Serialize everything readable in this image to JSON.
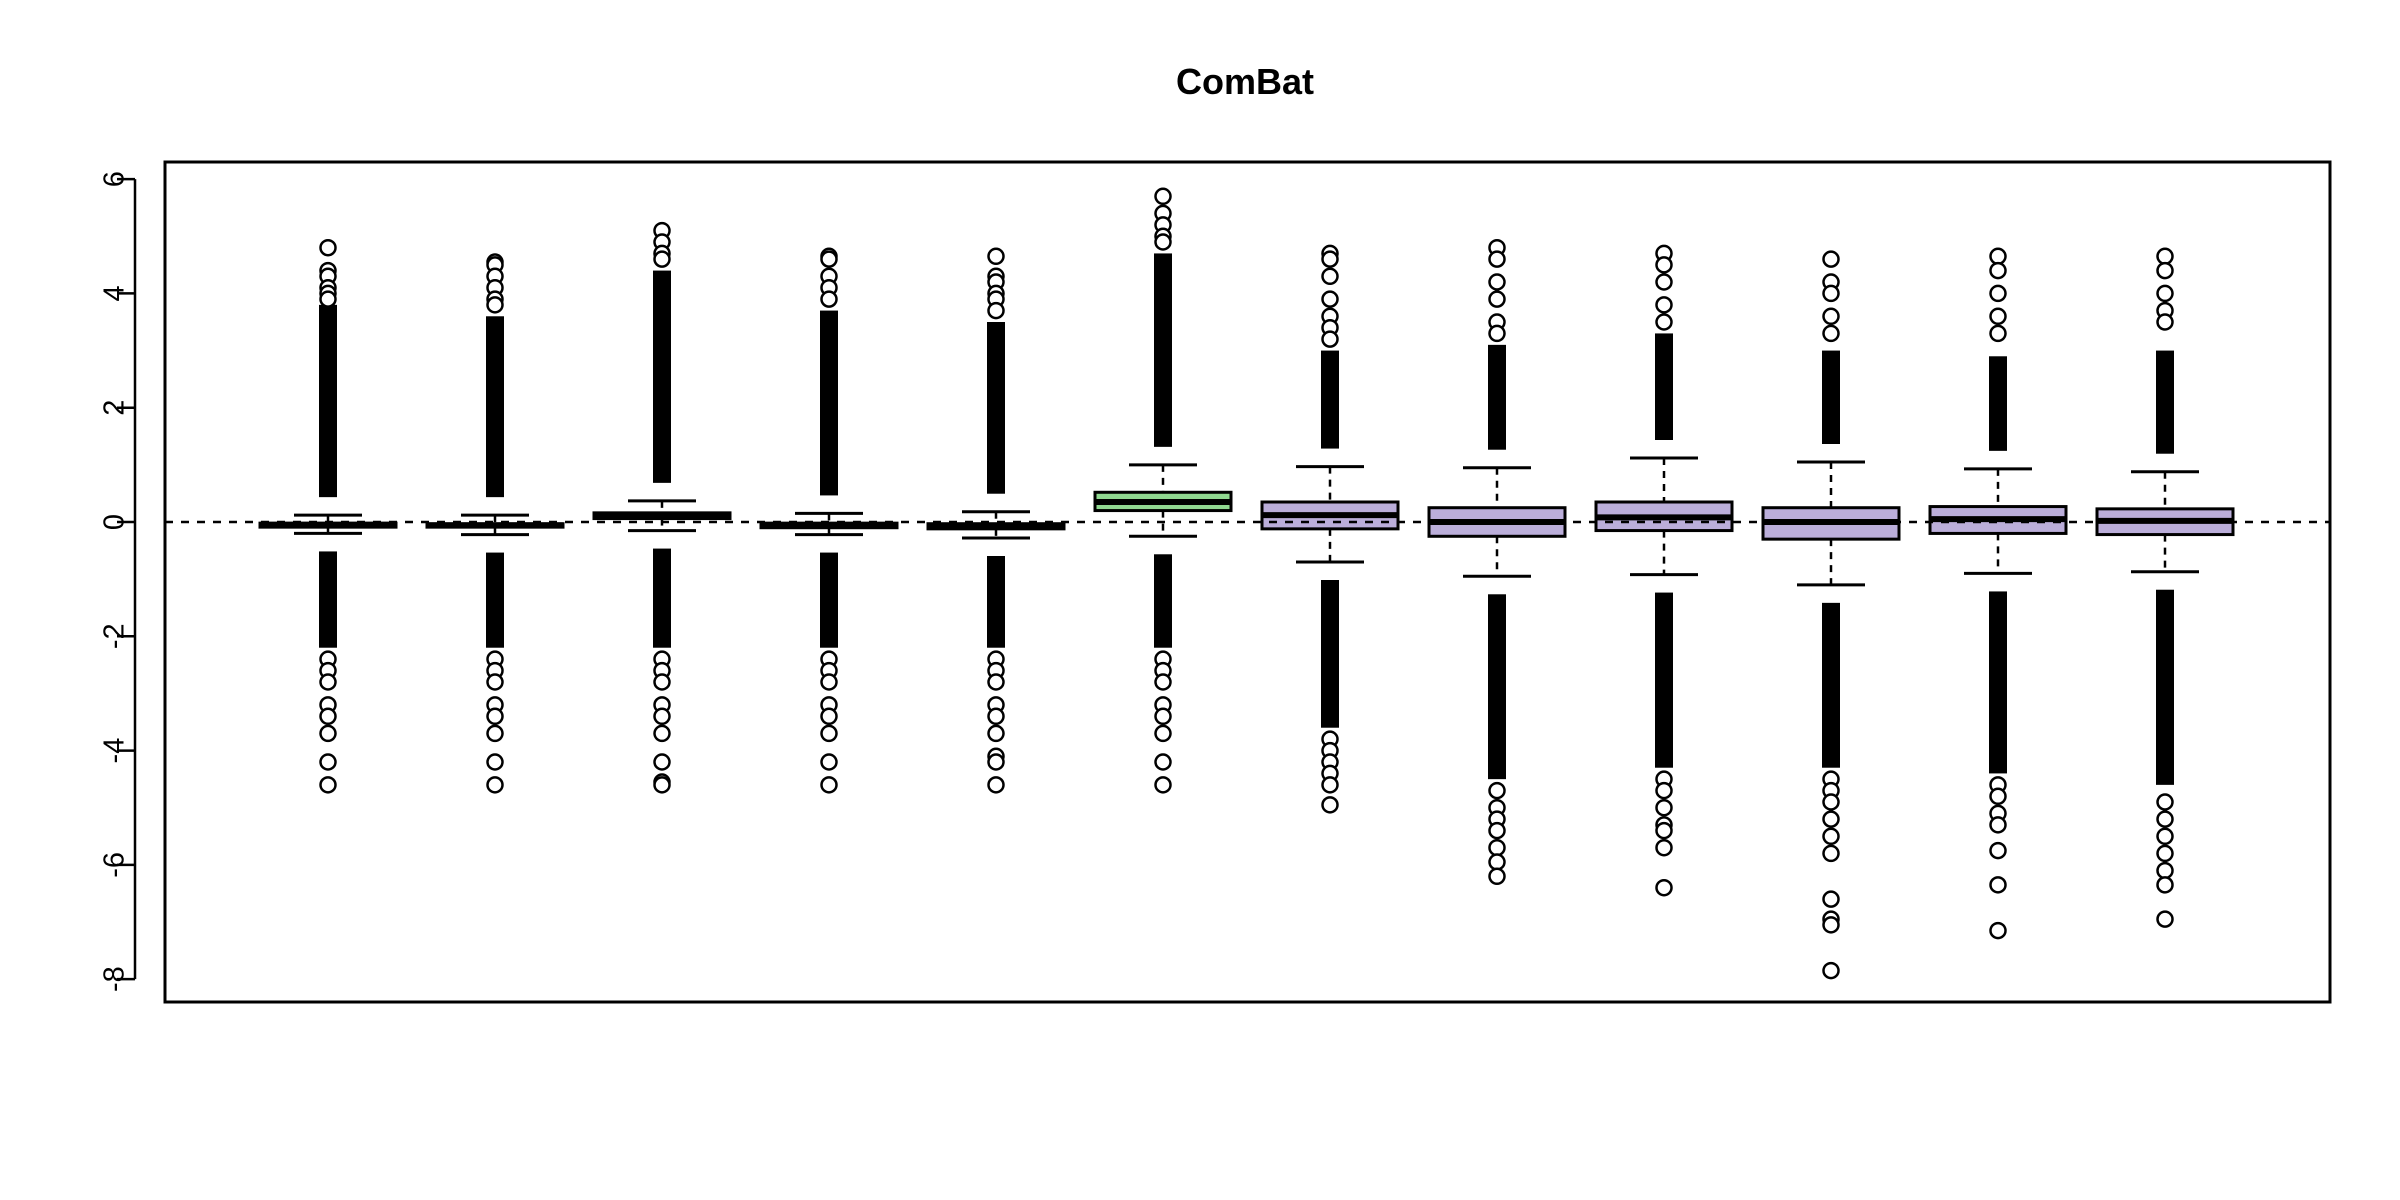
{
  "chart_data": {
    "type": "boxplot",
    "title": "ComBat",
    "xlabel": "",
    "ylabel": "",
    "ylim": [
      -8.4,
      6.3
    ],
    "yticks": [
      "6",
      "4",
      "2",
      "0",
      "-2",
      "-4",
      "-6",
      "-8"
    ],
    "ytick_values": [
      6,
      4,
      2,
      0,
      -2,
      -4,
      -6,
      -8
    ],
    "reference_line": 0,
    "grid": false,
    "legend": "none",
    "colors": {
      "batch1": "#000000",
      "batch2": "#90D890",
      "batch3": "#BBAEDA"
    },
    "boxes": [
      {
        "group": "batch1",
        "whisker_low": -0.2,
        "q1": -0.09,
        "median": -0.05,
        "q3": -0.02,
        "whisker_high": 0.12,
        "outlier_max": 4.8,
        "outlier_min": -4.6,
        "dense_high": 3.8,
        "dense_low": -2.2,
        "sparse_high": [
          4.4,
          4.3,
          4.1,
          4.0,
          3.9
        ],
        "sparse_low": [
          -2.4,
          -2.6,
          -2.8,
          -3.2,
          -3.4,
          -3.7,
          -4.2
        ]
      },
      {
        "group": "batch1",
        "whisker_low": -0.22,
        "q1": -0.09,
        "median": -0.06,
        "q3": -0.03,
        "whisker_high": 0.12,
        "outlier_max": 4.55,
        "outlier_min": -4.6,
        "dense_high": 3.6,
        "dense_low": -2.2,
        "sparse_high": [
          4.5,
          4.3,
          4.1,
          3.9,
          3.8
        ],
        "sparse_low": [
          -2.4,
          -2.6,
          -2.8,
          -3.2,
          -3.4,
          -3.7,
          -4.2
        ]
      },
      {
        "group": "batch1",
        "whisker_low": -0.15,
        "q1": 0.06,
        "median": 0.1,
        "q3": 0.16,
        "whisker_high": 0.37,
        "outlier_max": 5.1,
        "outlier_min": -4.6,
        "dense_high": 4.4,
        "dense_low": -2.2,
        "sparse_high": [
          4.9,
          4.7,
          4.6
        ],
        "sparse_low": [
          -2.4,
          -2.6,
          -2.8,
          -3.2,
          -3.4,
          -3.7,
          -4.2,
          -4.55
        ]
      },
      {
        "group": "batch1",
        "whisker_low": -0.22,
        "q1": -0.1,
        "median": -0.06,
        "q3": -0.02,
        "whisker_high": 0.15,
        "outlier_max": 4.65,
        "outlier_min": -4.6,
        "dense_high": 3.7,
        "dense_low": -2.2,
        "sparse_high": [
          4.6,
          4.3,
          4.1,
          3.9
        ],
        "sparse_low": [
          -2.4,
          -2.6,
          -2.8,
          -3.2,
          -3.4,
          -3.7,
          -4.2
        ]
      },
      {
        "group": "batch1",
        "whisker_low": -0.28,
        "q1": -0.12,
        "median": -0.07,
        "q3": -0.03,
        "whisker_high": 0.18,
        "outlier_max": 4.65,
        "outlier_min": -4.6,
        "dense_high": 3.5,
        "dense_low": -2.2,
        "sparse_high": [
          4.3,
          4.2,
          4.0,
          3.9,
          3.7
        ],
        "sparse_low": [
          -2.4,
          -2.6,
          -2.8,
          -3.2,
          -3.4,
          -3.7,
          -4.1,
          -4.2
        ]
      },
      {
        "group": "batch2",
        "whisker_low": -0.25,
        "q1": 0.2,
        "median": 0.35,
        "q3": 0.52,
        "whisker_high": 1.0,
        "outlier_max": 5.7,
        "outlier_min": -4.6,
        "dense_high": 4.7,
        "dense_low": -2.2,
        "sparse_high": [
          5.4,
          5.2,
          5.0,
          4.9
        ],
        "sparse_low": [
          -2.4,
          -2.6,
          -2.8,
          -3.2,
          -3.4,
          -3.7,
          -4.2
        ]
      },
      {
        "group": "batch3",
        "whisker_low": -0.7,
        "q1": -0.12,
        "median": 0.12,
        "q3": 0.35,
        "whisker_high": 0.97,
        "outlier_max": 4.7,
        "outlier_min": -4.95,
        "dense_high": 3.0,
        "dense_low": -3.6,
        "sparse_high": [
          4.6,
          4.3,
          3.9,
          3.6,
          3.4,
          3.2
        ],
        "sparse_low": [
          -3.8,
          -4.0,
          -4.2,
          -4.4,
          -4.6
        ]
      },
      {
        "group": "batch3",
        "whisker_low": -0.95,
        "q1": -0.25,
        "median": 0.0,
        "q3": 0.25,
        "whisker_high": 0.95,
        "outlier_max": 4.8,
        "outlier_min": -6.2,
        "dense_high": 3.1,
        "dense_low": -4.5,
        "sparse_high": [
          4.6,
          4.2,
          3.9,
          3.5,
          3.3
        ],
        "sparse_low": [
          -4.7,
          -5.0,
          -5.2,
          -5.4,
          -5.7,
          -5.95
        ]
      },
      {
        "group": "batch3",
        "whisker_low": -0.92,
        "q1": -0.15,
        "median": 0.08,
        "q3": 0.35,
        "whisker_high": 1.12,
        "outlier_max": 4.7,
        "outlier_min": -6.4,
        "dense_high": 3.3,
        "dense_low": -4.3,
        "sparse_high": [
          4.5,
          4.2,
          3.8,
          3.5
        ],
        "sparse_low": [
          -4.5,
          -4.7,
          -5.0,
          -5.3,
          -5.4,
          -5.7
        ]
      },
      {
        "group": "batch3",
        "whisker_low": -1.1,
        "q1": -0.3,
        "median": 0.0,
        "q3": 0.25,
        "whisker_high": 1.05,
        "outlier_max": 4.6,
        "outlier_min": -7.85,
        "dense_high": 3.0,
        "dense_low": -4.3,
        "sparse_high": [
          4.2,
          4.0,
          3.6,
          3.3
        ],
        "sparse_low": [
          -4.5,
          -4.7,
          -4.9,
          -5.2,
          -5.5,
          -5.8,
          -6.6,
          -6.95,
          -7.05
        ]
      },
      {
        "group": "batch3",
        "whisker_low": -0.9,
        "q1": -0.2,
        "median": 0.05,
        "q3": 0.27,
        "whisker_high": 0.93,
        "outlier_max": 4.65,
        "outlier_min": -7.15,
        "dense_high": 2.9,
        "dense_low": -4.4,
        "sparse_high": [
          4.4,
          4.0,
          3.6,
          3.3
        ],
        "sparse_low": [
          -4.6,
          -4.8,
          -5.1,
          -5.3,
          -5.75,
          -6.35
        ]
      },
      {
        "group": "batch3",
        "whisker_low": -0.87,
        "q1": -0.22,
        "median": 0.02,
        "q3": 0.23,
        "whisker_high": 0.88,
        "outlier_max": 4.65,
        "outlier_min": -6.95,
        "dense_high": 3.0,
        "dense_low": -4.6,
        "sparse_high": [
          4.4,
          4.0,
          3.7,
          3.5
        ],
        "sparse_low": [
          -4.9,
          -5.2,
          -5.5,
          -5.8,
          -6.1,
          -6.35
        ]
      }
    ]
  }
}
